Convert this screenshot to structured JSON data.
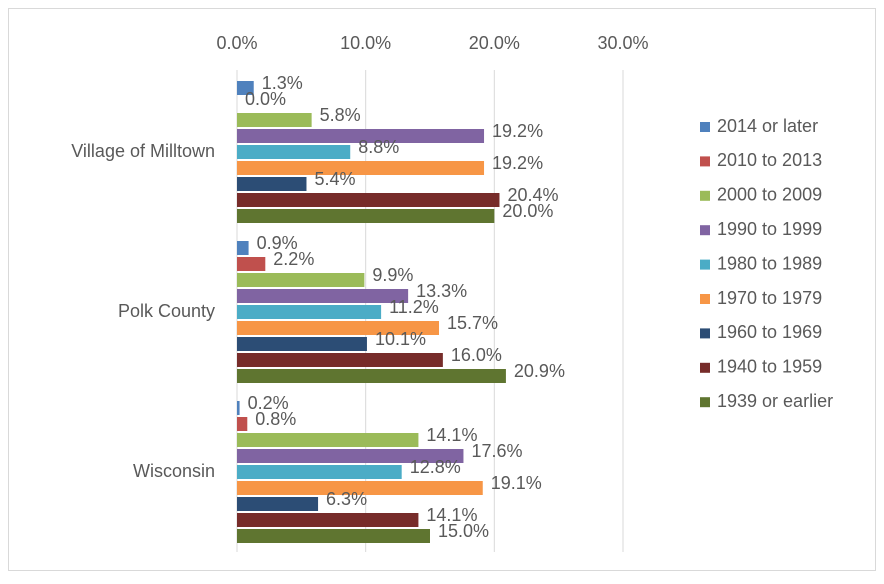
{
  "chart_data": {
    "type": "bar",
    "orientation": "horizontal",
    "categories": [
      "Village of Milltown",
      "Polk County",
      "Wisconsin"
    ],
    "series": [
      {
        "name": "2014 or later",
        "color": "#4f81bd",
        "values": [
          1.3,
          0.9,
          0.2
        ],
        "value_labels": [
          "1.3%",
          "0.9%",
          "0.2%"
        ]
      },
      {
        "name": "2010 to 2013",
        "color": "#c0504d",
        "values": [
          0.0,
          2.2,
          0.8
        ],
        "value_labels": [
          "0.0%",
          "2.2%",
          "0.8%"
        ]
      },
      {
        "name": "2000 to 2009",
        "color": "#9bbb59",
        "values": [
          5.8,
          9.9,
          14.1
        ],
        "value_labels": [
          "5.8%",
          "9.9%",
          "14.1%"
        ]
      },
      {
        "name": "1990 to 1999",
        "color": "#8064a2",
        "values": [
          19.2,
          13.3,
          17.6
        ],
        "value_labels": [
          "19.2%",
          "13.3%",
          "17.6%"
        ]
      },
      {
        "name": "1980 to 1989",
        "color": "#4bacc6",
        "values": [
          8.8,
          11.2,
          12.8
        ],
        "value_labels": [
          "8.8%",
          "11.2%",
          "12.8%"
        ]
      },
      {
        "name": "1970 to 1979",
        "color": "#f79646",
        "values": [
          19.2,
          15.7,
          19.1
        ],
        "value_labels": [
          "19.2%",
          "15.7%",
          "19.1%"
        ]
      },
      {
        "name": "1960 to 1969",
        "color": "#2c4d75",
        "values": [
          5.4,
          10.1,
          6.3
        ],
        "value_labels": [
          "5.4%",
          "10.1%",
          "6.3%"
        ]
      },
      {
        "name": "1940 to 1959",
        "color": "#772c2a",
        "values": [
          20.4,
          16.0,
          14.1
        ],
        "value_labels": [
          "20.4%",
          "16.0%",
          "14.1%"
        ]
      },
      {
        "name": "1939 or earlier",
        "color": "#5f7530",
        "values": [
          20.0,
          20.9,
          15.0
        ],
        "value_labels": [
          "20.0%",
          "20.9%",
          "15.0%"
        ]
      }
    ],
    "xlim": [
      0,
      30
    ],
    "xticks": [
      {
        "value": 0,
        "label": "0.0%"
      },
      {
        "value": 10,
        "label": "10.0%"
      },
      {
        "value": 20,
        "label": "20.0%"
      },
      {
        "value": 30,
        "label": "30.0%"
      }
    ],
    "grid": true,
    "legend": "right"
  }
}
